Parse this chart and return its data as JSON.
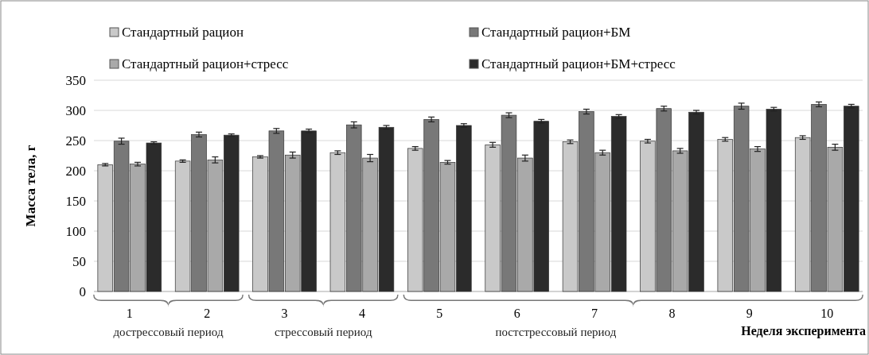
{
  "chart_data": {
    "type": "bar",
    "ylabel": "Масса тела, г",
    "xlabel": "Неделя эксперимента",
    "categories": [
      "1",
      "2",
      "3",
      "4",
      "5",
      "6",
      "7",
      "8",
      "9",
      "10"
    ],
    "series": [
      {
        "name": "Стандартный рацион",
        "color": "#c9c9c9",
        "values": [
          210,
          216,
          223,
          230,
          237,
          243,
          248,
          249,
          252,
          255
        ],
        "errors": [
          2,
          2,
          2,
          3,
          3,
          4,
          3,
          3,
          3,
          3
        ]
      },
      {
        "name": "Стандартный рацион+БМ",
        "color": "#787878",
        "values": [
          249,
          260,
          266,
          276,
          285,
          292,
          298,
          303,
          307,
          310
        ],
        "errors": [
          5,
          4,
          4,
          5,
          4,
          4,
          4,
          4,
          5,
          4
        ]
      },
      {
        "name": "Стандартный рацион+стресс",
        "color": "#a9a9a9",
        "values": [
          211,
          218,
          226,
          221,
          214,
          221,
          230,
          233,
          236,
          239
        ],
        "errors": [
          3,
          5,
          5,
          6,
          3,
          5,
          4,
          4,
          4,
          5
        ]
      },
      {
        "name": "Стандартный рацион+БМ+стресс",
        "color": "#2b2b2b",
        "values": [
          246,
          259,
          266,
          272,
          275,
          282,
          290,
          297,
          302,
          307
        ],
        "errors": [
          2,
          2,
          3,
          3,
          3,
          3,
          3,
          3,
          3,
          3
        ]
      }
    ],
    "ylim": [
      0,
      350
    ],
    "yticks": [
      0,
      50,
      100,
      150,
      200,
      250,
      300,
      350
    ],
    "grid": "y",
    "legend": "top",
    "annotations": [
      "дострессовый период",
      "стрессовый период",
      "постстрессовый период"
    ]
  }
}
